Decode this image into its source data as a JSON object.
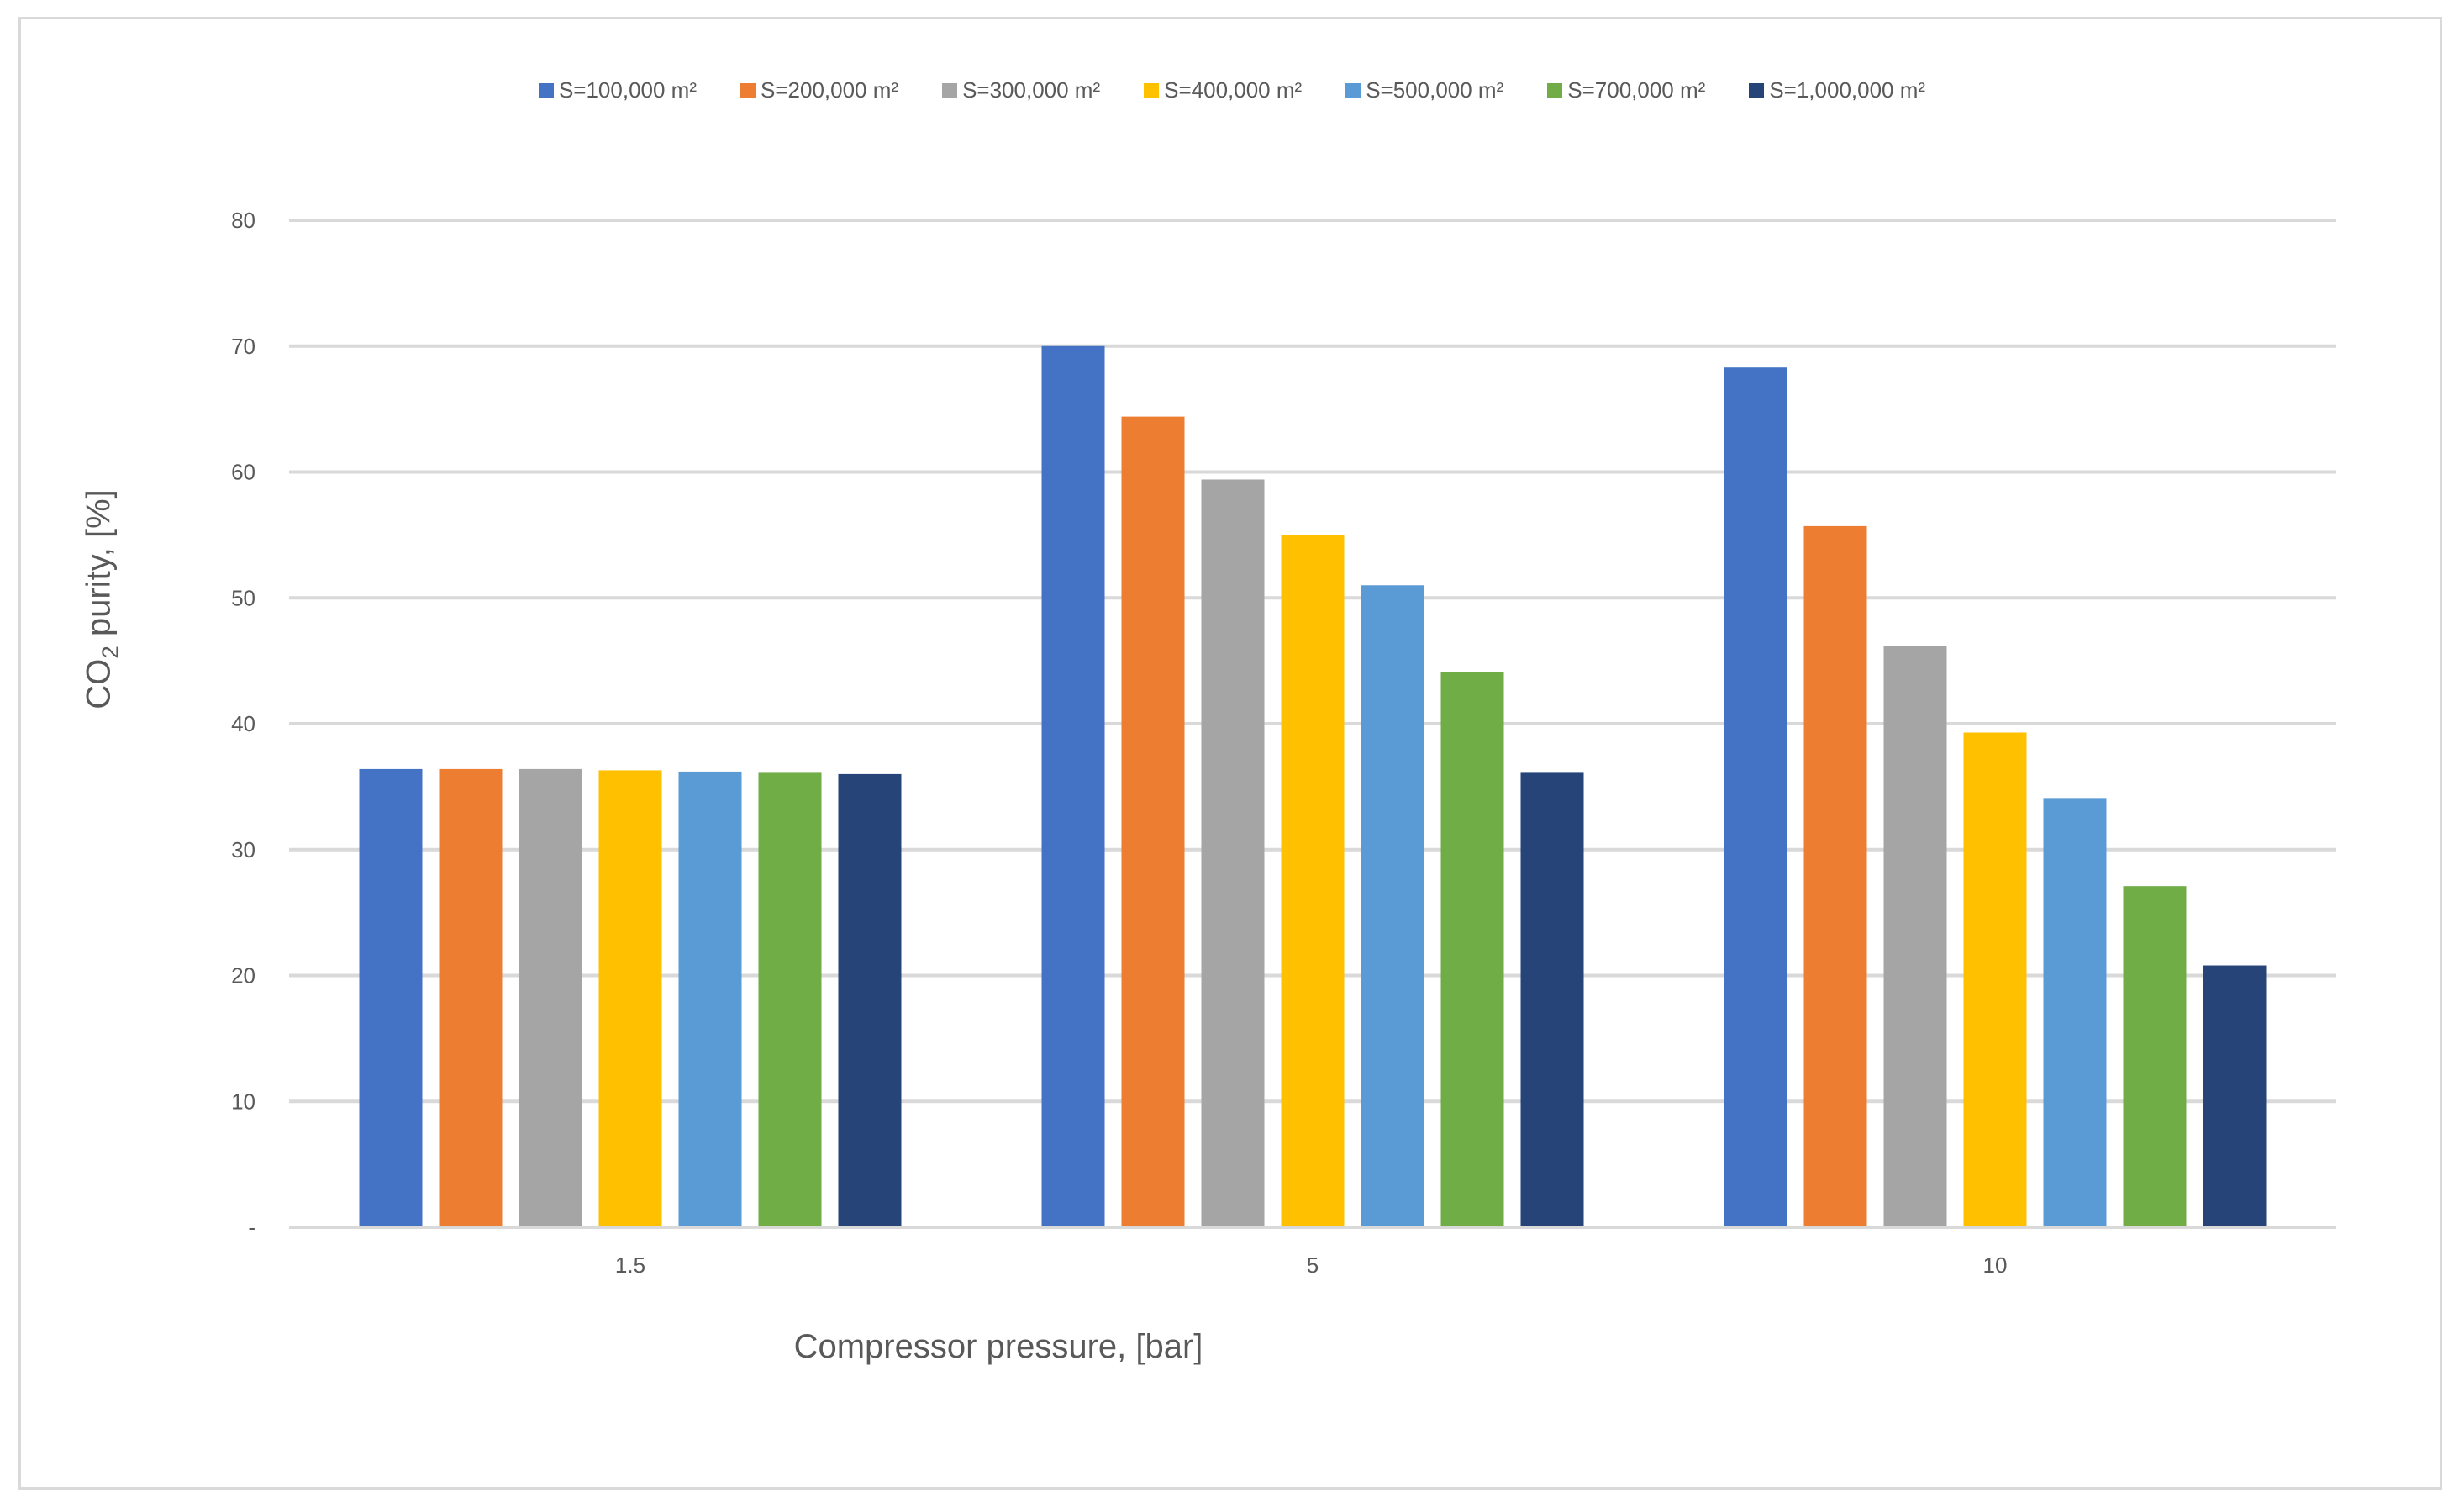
{
  "chart_data": {
    "type": "bar",
    "title": "",
    "xlabel": "Compressor pressure, [bar]",
    "ylabel": {
      "prefix": "CO",
      "subscript": "2",
      "suffix": " purity, [%]"
    },
    "categories": [
      "1.5",
      "5",
      "10"
    ],
    "ylim": [
      0,
      80
    ],
    "yticks": [
      {
        "value": 0,
        "label": "-"
      },
      {
        "value": 10,
        "label": "10"
      },
      {
        "value": 20,
        "label": "20"
      },
      {
        "value": 30,
        "label": "30"
      },
      {
        "value": 40,
        "label": "40"
      },
      {
        "value": 50,
        "label": "50"
      },
      {
        "value": 60,
        "label": "60"
      },
      {
        "value": 70,
        "label": "70"
      },
      {
        "value": 80,
        "label": "80"
      }
    ],
    "grid": true,
    "legend_position": "top",
    "series": [
      {
        "name": "S=100,000 m²",
        "color": "#4472c4",
        "values": [
          36.4,
          70.0,
          68.3
        ]
      },
      {
        "name": "S=200,000 m²",
        "color": "#ed7d31",
        "values": [
          36.4,
          64.4,
          55.7
        ]
      },
      {
        "name": "S=300,000 m²",
        "color": "#a5a5a5",
        "values": [
          36.4,
          59.4,
          46.2
        ]
      },
      {
        "name": "S=400,000 m²",
        "color": "#ffc000",
        "values": [
          36.3,
          55.0,
          39.3
        ]
      },
      {
        "name": "S=500,000 m²",
        "color": "#5b9bd5",
        "values": [
          36.2,
          51.0,
          34.1
        ]
      },
      {
        "name": "S=700,000 m²",
        "color": "#70ad47",
        "values": [
          36.1,
          44.1,
          27.1
        ]
      },
      {
        "name": "S=1,000,000 m²",
        "color": "#264478",
        "values": [
          36.0,
          36.1,
          20.8
        ]
      }
    ]
  }
}
